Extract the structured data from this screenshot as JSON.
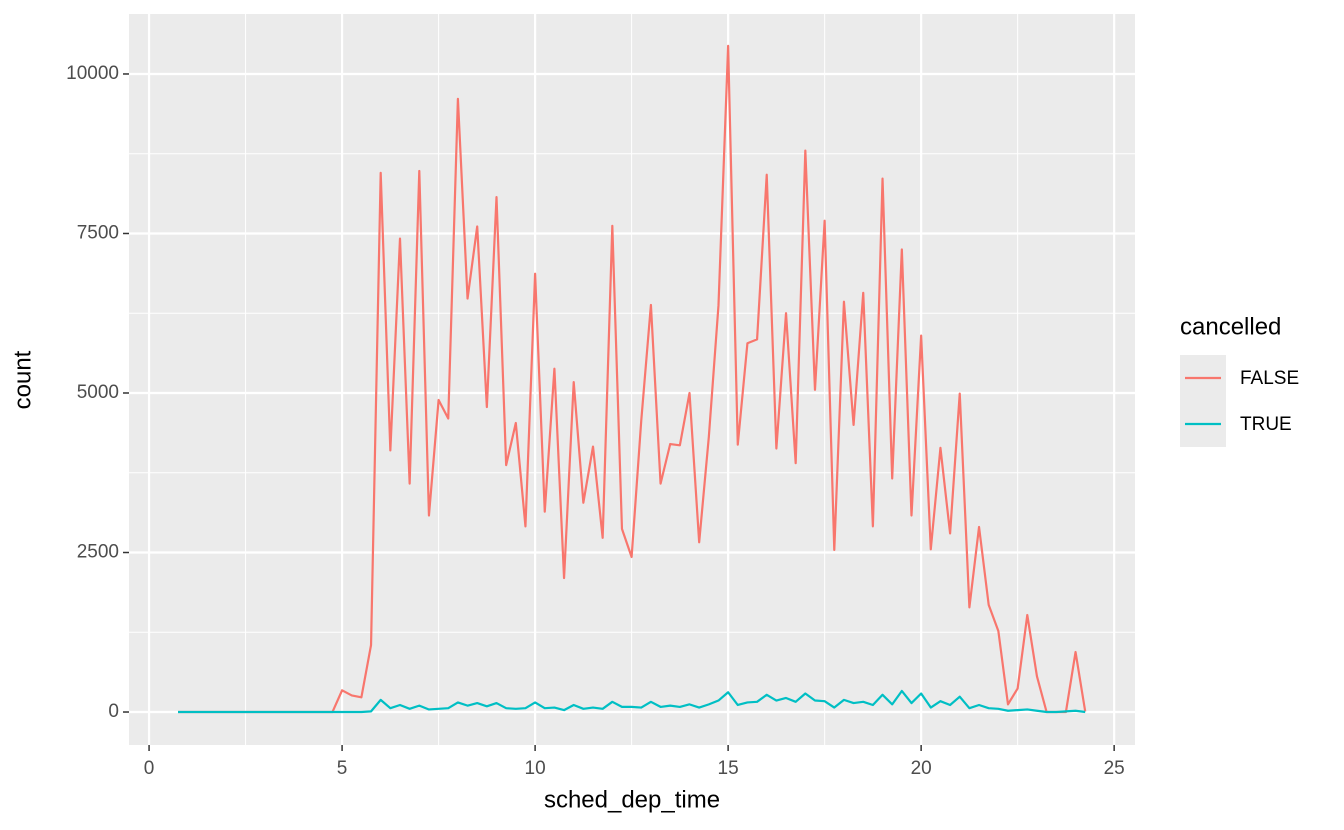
{
  "chart_data": {
    "type": "line",
    "x_label": "sched_dep_time",
    "y_label": "count",
    "legend_title": "cancelled",
    "x": [
      0.75,
      1,
      1.25,
      1.5,
      1.75,
      2,
      2.25,
      2.5,
      2.75,
      3,
      3.25,
      3.5,
      3.75,
      4,
      4.25,
      4.5,
      4.75,
      5,
      5.25,
      5.5,
      5.75,
      6,
      6.25,
      6.5,
      6.75,
      7,
      7.25,
      7.5,
      7.75,
      8,
      8.25,
      8.5,
      8.75,
      9,
      9.25,
      9.5,
      9.75,
      10,
      10.25,
      10.5,
      10.75,
      11,
      11.25,
      11.5,
      11.75,
      12,
      12.25,
      12.5,
      12.75,
      13,
      13.25,
      13.5,
      13.75,
      14,
      14.25,
      14.5,
      14.75,
      15,
      15.25,
      15.5,
      15.75,
      16,
      16.25,
      16.5,
      16.75,
      17,
      17.25,
      17.5,
      17.75,
      18,
      18.25,
      18.5,
      18.75,
      19,
      19.25,
      19.5,
      19.75,
      20,
      20.25,
      20.5,
      20.75,
      21,
      21.25,
      21.5,
      21.75,
      22,
      22.25,
      22.5,
      22.75,
      23,
      23.25,
      23.5,
      23.75,
      24,
      24.25
    ],
    "series": [
      {
        "name": "FALSE",
        "color": "#F8766D",
        "values": [
          0,
          0,
          0,
          0,
          0,
          0,
          0,
          0,
          0,
          0,
          0,
          0,
          0,
          0,
          0,
          0,
          0,
          340,
          260,
          230,
          1050,
          8450,
          4100,
          7420,
          3580,
          8480,
          3080,
          4890,
          4600,
          9610,
          6480,
          7610,
          4780,
          8070,
          3870,
          4530,
          2910,
          6870,
          3140,
          5380,
          2100,
          5170,
          3280,
          4160,
          2730,
          7620,
          2870,
          2430,
          4570,
          6380,
          3580,
          4200,
          4180,
          5000,
          2660,
          4310,
          6370,
          10440,
          4190,
          5780,
          5840,
          8420,
          4130,
          6250,
          3900,
          8800,
          5050,
          7700,
          2540,
          6430,
          4500,
          6570,
          2910,
          8360,
          3660,
          7250,
          3080,
          5900,
          2550,
          4140,
          2800,
          4990,
          1640,
          2900,
          1680,
          1270,
          120,
          370,
          1520,
          560,
          0,
          0,
          0,
          940,
          10
        ]
      },
      {
        "name": "TRUE",
        "color": "#00BFC4",
        "values": [
          0,
          0,
          0,
          0,
          0,
          0,
          0,
          0,
          0,
          0,
          0,
          0,
          0,
          0,
          0,
          0,
          0,
          0,
          0,
          0,
          10,
          190,
          60,
          110,
          50,
          100,
          40,
          50,
          60,
          150,
          100,
          140,
          90,
          140,
          60,
          50,
          60,
          150,
          60,
          70,
          30,
          110,
          50,
          70,
          50,
          160,
          80,
          80,
          70,
          160,
          80,
          100,
          80,
          120,
          70,
          120,
          180,
          310,
          110,
          150,
          160,
          270,
          180,
          220,
          160,
          290,
          180,
          170,
          70,
          190,
          140,
          160,
          110,
          270,
          120,
          330,
          140,
          290,
          70,
          170,
          110,
          240,
          60,
          110,
          60,
          50,
          20,
          30,
          40,
          20,
          0,
          0,
          10,
          20,
          0
        ]
      }
    ],
    "xlim": [
      -0.52,
      25.54
    ],
    "xticks": [
      0,
      5,
      10,
      15,
      20,
      25
    ],
    "ylim": [
      -517,
      10940
    ],
    "yticks": [
      0,
      2500,
      5000,
      7500,
      10000
    ],
    "grid": true,
    "legend_position": "right"
  }
}
